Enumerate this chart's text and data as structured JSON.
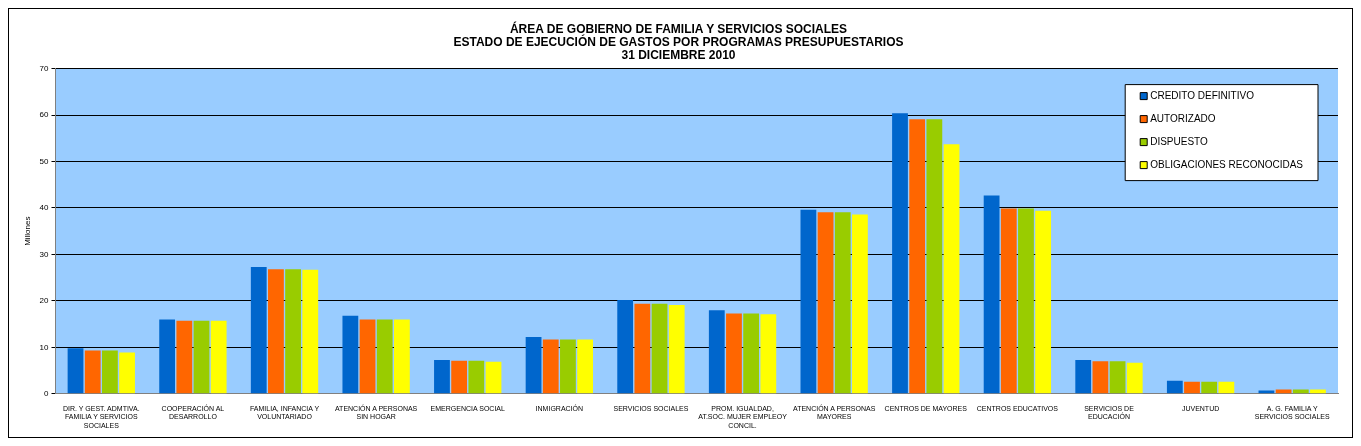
{
  "chart_data": {
    "type": "bar",
    "title": "ÁREA DE GOBIERNO DE FAMILIA Y SERVICIOS SOCIALES\nESTADO DE EJECUCIÓN DE GASTOS POR PROGRAMAS PRESUPUESTARIOS\n31 DICIEMBRE 2010",
    "ylabel": "Millones",
    "categories": [
      "DIR. Y GEST. ADMTIVA. FAMILIA Y SERVICIOS SOCIALES",
      "COOPERACIÓN AL DESARROLLO",
      "FAMILIA, INFANCIA Y VOLUNTARIADO",
      "ATENCIÓN A PERSONAS SIN HOGAR",
      "EMERGENCIA SOCIAL",
      "INMIGRACIÓN",
      "SERVICIOS SOCIALES",
      "PROM. IGUALDAD, AT.SOC. MUJER EMPLEOY CONCIL.",
      "ATENCIÓN A PERSONAS MAYORES",
      "CENTROS DE MAYORES",
      "CENTROS EDUCATIVOS",
      "SERVICIOS DE EDUCACIÓN",
      "JUVENTUD",
      "A. G. FAMILIA Y SERVICIOS SOCIALES"
    ],
    "series": [
      {
        "name": "CREDITO DEFINITIVO",
        "color": "#0066cc",
        "values": [
          9.8,
          16,
          27.3,
          16.8,
          7.3,
          12.2,
          20.2,
          18,
          39.6,
          60.4,
          42.7,
          7.3,
          2.8,
          0.7
        ]
      },
      {
        "name": "AUTORIZADO",
        "color": "#ff6600",
        "values": [
          9.3,
          15.7,
          26.8,
          16,
          7.1,
          11.7,
          19.4,
          17.3,
          39.1,
          59.1,
          39.9,
          7,
          2.6,
          0.9
        ]
      },
      {
        "name": "DISPUESTO",
        "color": "#99cc00",
        "values": [
          9.3,
          15.7,
          26.8,
          16,
          7.1,
          11.7,
          19.4,
          17.3,
          39.1,
          59.1,
          39.9,
          7,
          2.6,
          0.9
        ]
      },
      {
        "name": "OBLIGACIONES RECONOCIDAS",
        "color": "#ffff00",
        "values": [
          8.9,
          15.7,
          26.7,
          16,
          6.9,
          11.7,
          19.1,
          17.1,
          38.6,
          53.7,
          39.4,
          6.7,
          2.6,
          0.9
        ]
      }
    ],
    "ylim": [
      0,
      70
    ],
    "yticks": [
      0,
      10,
      20,
      30,
      40,
      50,
      60,
      70
    ],
    "grid": "y",
    "legend": "top right"
  }
}
